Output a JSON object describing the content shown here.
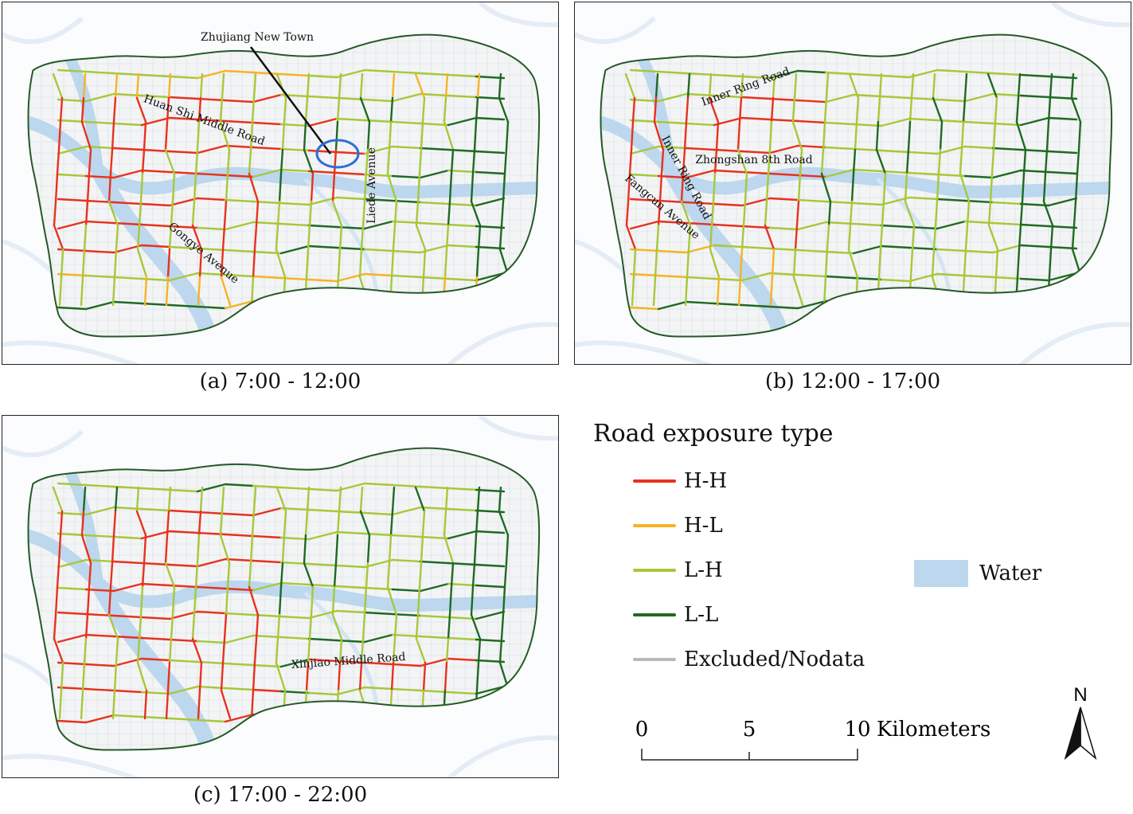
{
  "panels": [
    {
      "caption": "(a) 7:00 - 12:00",
      "labels": [
        {
          "text": "Zhujiang New Town"
        },
        {
          "text": "Huan Shi Middle Road"
        },
        {
          "text": "Liede Avenue"
        },
        {
          "text": "Gongye Avenue"
        }
      ]
    },
    {
      "caption": "(b) 12:00 - 17:00",
      "labels": [
        {
          "text": "Inner Ring Road"
        },
        {
          "text": "Inner Ring Road"
        },
        {
          "text": "Zhongshan 8th Road"
        },
        {
          "text": "Fangcun Avenue"
        }
      ]
    },
    {
      "caption": "(c) 17:00 - 22:00",
      "labels": [
        {
          "text": "Xinjiao Middle Road"
        }
      ]
    }
  ],
  "legend": {
    "title": "Road exposure type",
    "items": [
      {
        "label": "H-H",
        "color": "#e8311e"
      },
      {
        "label": "H-L",
        "color": "#f6b324"
      },
      {
        "label": "L-H",
        "color": "#a6c83a"
      },
      {
        "label": "L-L",
        "color": "#1f6a22"
      },
      {
        "label": "Excluded/Nodata",
        "color": "#b8b8b8"
      }
    ],
    "water_label": "Water",
    "water_color": "#bcd7ee"
  },
  "scalebar": {
    "ticks": [
      "0",
      "5",
      "10"
    ],
    "unit": "Kilometers"
  },
  "north_arrow": {
    "label": "N",
    "icon": "north-arrow-icon"
  }
}
